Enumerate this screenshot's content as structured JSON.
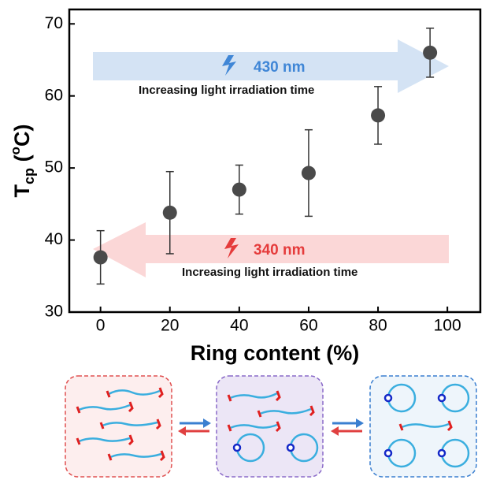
{
  "chart_data": {
    "type": "scatter",
    "xlabel": "Ring content (%)",
    "ylabel": [
      "T",
      "cp",
      " (",
      "o",
      "C)"
    ],
    "x": [
      0,
      20,
      40,
      60,
      80,
      95
    ],
    "values": [
      37.6,
      43.8,
      47.0,
      49.3,
      57.3,
      66.0
    ],
    "errors": [
      3.7,
      5.7,
      3.4,
      6.0,
      4.0,
      3.4
    ],
    "color": "#4a4a4a",
    "xlim": [
      -9,
      109.5
    ],
    "ylim": [
      30,
      72
    ],
    "xticks": [
      0,
      20,
      40,
      60,
      80,
      100
    ],
    "yticks": [
      30,
      40,
      50,
      60,
      70
    ],
    "annotations": [
      "430 nm",
      "Increasing light irradiation time",
      "340 nm",
      "Increasing light irradiation time"
    ]
  }
}
